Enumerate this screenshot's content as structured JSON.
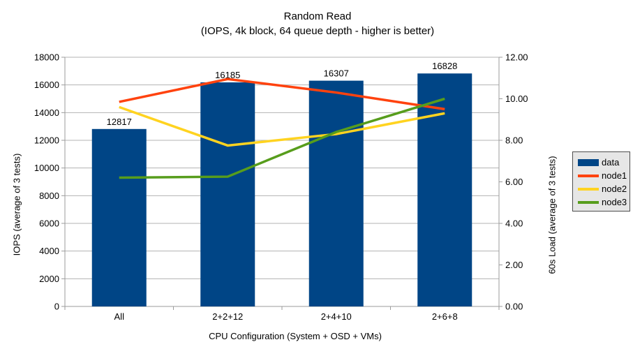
{
  "colors": {
    "background": "#FFFFFF",
    "grid": "#B3B3B3",
    "axis": "#9B9B9B",
    "text": "#000000",
    "legend_background": "#E6E6E6",
    "legend_border": "#4D4D4D",
    "bar": "#004586",
    "node1": "#FF420E",
    "node2": "#FFD320",
    "node3": "#579D1C"
  },
  "chart_data": {
    "type": "bar",
    "combo": "bars (left axis) + lines (right axis)",
    "title": "Random Read",
    "subtitle": "(IOPS, 4k block, 64 queue depth - higher is better)",
    "categories": [
      "All",
      "2+2+12",
      "2+4+10",
      "2+6+8"
    ],
    "xlabel": "CPU Configuration (System + OSD + VMs)",
    "ylabel_left": "IOPS (average of 3 tests)",
    "ylabel_right": "60s Load (average of 3 tests)",
    "y_left": {
      "min": 0,
      "max": 18000,
      "step": 2000,
      "tick_labels": [
        "0",
        "2000",
        "4000",
        "6000",
        "8000",
        "10000",
        "12000",
        "14000",
        "16000",
        "18000"
      ]
    },
    "y_right": {
      "min": 0,
      "max": 12,
      "step": 2,
      "tick_labels": [
        "0.00",
        "2.00",
        "4.00",
        "6.00",
        "8.00",
        "10.00",
        "12.00"
      ]
    },
    "grid": "horizontal gridlines at every left-axis step",
    "legend_position": "right",
    "series": [
      {
        "name": "data",
        "type": "bar",
        "axis": "left",
        "color": "#004586",
        "values": [
          12817,
          16185,
          16307,
          16828
        ],
        "data_labels": [
          "12817",
          "16185",
          "16307",
          "16828"
        ]
      },
      {
        "name": "node1",
        "type": "line",
        "axis": "right",
        "color": "#FF420E",
        "values": [
          9.85,
          10.95,
          10.3,
          9.5
        ]
      },
      {
        "name": "node2",
        "type": "line",
        "axis": "right",
        "color": "#FFD320",
        "values": [
          9.6,
          7.75,
          8.3,
          9.3
        ]
      },
      {
        "name": "node3",
        "type": "line",
        "axis": "right",
        "color": "#579D1C",
        "values": [
          6.2,
          6.25,
          8.4,
          10.0
        ]
      }
    ]
  }
}
